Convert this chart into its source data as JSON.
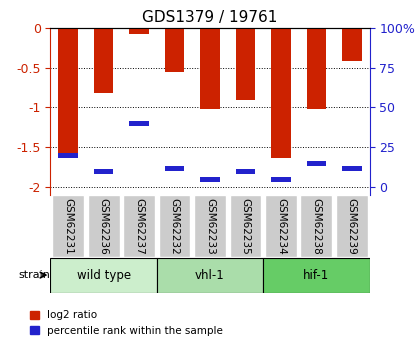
{
  "title": "GDS1379 / 19761",
  "samples": [
    "GSM62231",
    "GSM62236",
    "GSM62237",
    "GSM62232",
    "GSM62233",
    "GSM62235",
    "GSM62234",
    "GSM62238",
    "GSM62239"
  ],
  "log2_ratio": [
    -1.62,
    -0.82,
    -0.08,
    -0.55,
    -1.02,
    -0.9,
    -1.63,
    -1.02,
    -0.42
  ],
  "percentile_rank": [
    20,
    10,
    40,
    12,
    5,
    10,
    5,
    15,
    12
  ],
  "groups": [
    {
      "label": "wild type",
      "indices": [
        0,
        1,
        2
      ],
      "color": "#cceecc"
    },
    {
      "label": "vhl-1",
      "indices": [
        3,
        4,
        5
      ],
      "color": "#aaddaa"
    },
    {
      "label": "hif-1",
      "indices": [
        6,
        7,
        8
      ],
      "color": "#88cc88"
    }
  ],
  "ylim": [
    -2.1,
    0
  ],
  "yticks": [
    0,
    -0.5,
    -1.0,
    -1.5,
    -2.0
  ],
  "ytick_labels": [
    "0",
    "-0.5",
    "-1",
    "-1.5",
    "-2"
  ],
  "y2ticks": [
    0,
    25,
    50,
    75,
    100
  ],
  "y2tick_labels": [
    "0",
    "25",
    "50",
    "75",
    "100%"
  ],
  "bar_color": "#cc2200",
  "pct_color": "#2222cc",
  "xlabel_color": "black",
  "left_axis_color": "#cc2200",
  "right_axis_color": "#2222cc",
  "grid_color": "black",
  "tick_label_bg": "#cccccc",
  "group_row_bg": "#cccccc",
  "strain_label": "strain",
  "legend_log2": "log2 ratio",
  "legend_pct": "percentile rank within the sample"
}
